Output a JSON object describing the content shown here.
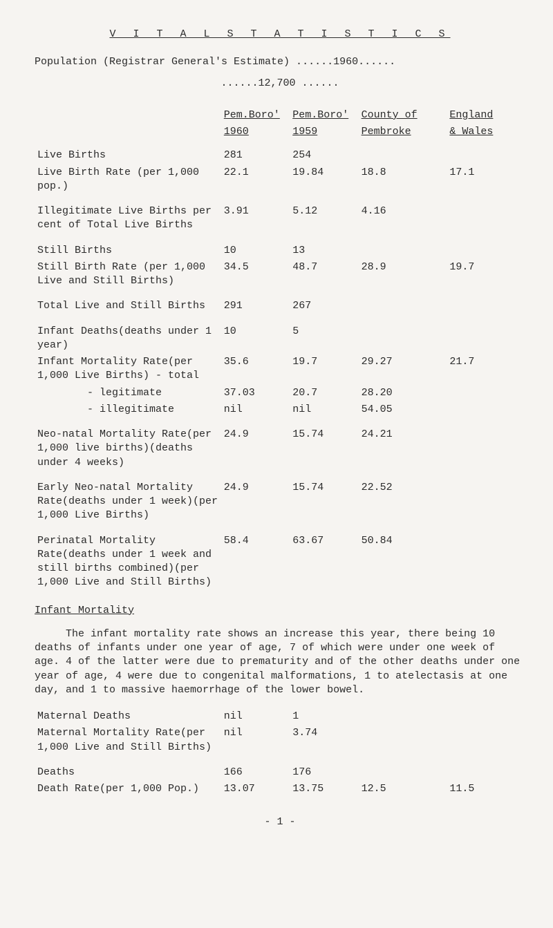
{
  "title": "V I T A L   S T A T I S T I C S",
  "intro": "Population (Registrar General's Estimate) ......1960......",
  "population": "......12,700 ......",
  "headers": {
    "top": [
      "Pem.Boro'",
      "Pem.Boro'",
      "County of",
      "England"
    ],
    "bottom": [
      "1960",
      "1959",
      "Pembroke",
      "& Wales"
    ]
  },
  "rows": [
    [
      "Live Births",
      "281",
      "254",
      "",
      ""
    ],
    [
      "Live Birth Rate (per 1,000 pop.)",
      "22.1",
      "19.84",
      "18.8",
      "17.1"
    ],
    [
      "Illegitimate Live Births per cent of Total Live Births",
      "3.91",
      "5.12",
      "4.16",
      ""
    ],
    [
      "Still Births",
      "10",
      "13",
      "",
      ""
    ],
    [
      "Still Birth Rate (per 1,000 Live and Still Births)",
      "34.5",
      "48.7",
      "28.9",
      "19.7"
    ],
    [
      "Total Live and Still Births",
      "291",
      "267",
      "",
      ""
    ],
    [
      "Infant Deaths(deaths under 1 year)",
      "10",
      "5",
      "",
      ""
    ],
    [
      "Infant Mortality Rate(per 1,000 Live Births)  - total",
      "35.6",
      "19.7",
      "29.27",
      "21.7"
    ],
    [
      "        - legitimate",
      "37.03",
      "20.7",
      "28.20",
      ""
    ],
    [
      "        - illegitimate",
      "nil",
      "nil",
      "54.05",
      ""
    ],
    [
      "Neo-natal Mortality Rate(per 1,000 live births)(deaths under 4 weeks)",
      "24.9",
      "15.74",
      "24.21",
      ""
    ],
    [
      "Early Neo-natal Mortality Rate(deaths under 1 week)(per 1,000 Live Births)",
      "24.9",
      "15.74",
      "22.52",
      ""
    ],
    [
      "Perinatal Mortality Rate(deaths under 1 week and still births combined)(per 1,000 Live and Still Births)",
      "58.4",
      "63.67",
      "50.84",
      ""
    ]
  ],
  "subhead": "Infant Mortality",
  "paragraph": "The infant mortality rate shows an increase this year, there being 10 deaths of infants under one year of age, 7 of which were under one week of age. 4 of the latter were due to prematurity and of the other deaths under one year of age, 4 were due to congenital malformations, 1 to atelectasis at one day, and 1 to massive haemorrhage of the lower bowel.",
  "rows2": [
    [
      "Maternal Deaths",
      "nil",
      "1",
      "",
      ""
    ],
    [
      "Maternal Mortality Rate(per 1,000 Live and Still Births)",
      "nil",
      "3.74",
      "",
      ""
    ],
    [
      "Deaths",
      "166",
      "176",
      "",
      ""
    ],
    [
      "Death Rate(per 1,000 Pop.)",
      "13.07",
      "13.75",
      "12.5",
      "11.5"
    ]
  ],
  "pageno": "- 1 -"
}
